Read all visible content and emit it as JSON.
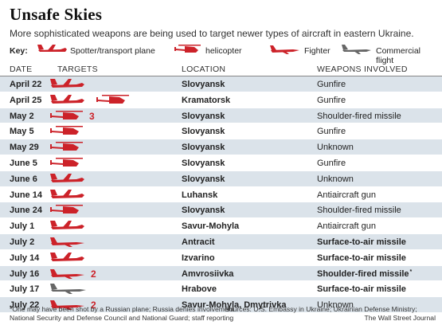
{
  "title": "Unsafe Skies",
  "subtitle": "More sophisticated weapons are being used to target newer types of aircraft in eastern Ukraine.",
  "key": {
    "label": "Key:",
    "items": [
      {
        "label": "Spotter/transport plane",
        "icon": "transport-plane-icon",
        "color": "#cc2229"
      },
      {
        "label": "helicopter",
        "icon": "helicopter-icon",
        "color": "#cc2229"
      },
      {
        "label": "Fighter",
        "icon": "fighter-jet-icon",
        "color": "#cc2229"
      },
      {
        "label": "Commercial flight",
        "icon": "commercial-jet-icon",
        "color": "#666666"
      }
    ]
  },
  "columns": {
    "date": "DATE",
    "targets": "TARGETS",
    "location": "LOCATION",
    "weapons": "WEAPONS INVOLVED"
  },
  "rows": [
    {
      "date": "April 22",
      "targets": [
        "transport"
      ],
      "count": "",
      "location": "Slovyansk",
      "weapons": "Gunfire",
      "weapons_bold": false,
      "note": ""
    },
    {
      "date": "April 25",
      "targets": [
        "transport",
        "helicopter"
      ],
      "count": "",
      "location": "Kramatorsk",
      "weapons": "Gunfire",
      "weapons_bold": false,
      "note": ""
    },
    {
      "date": "May 2",
      "targets": [
        "helicopter"
      ],
      "count": "3",
      "location": "Slovyansk",
      "weapons": "Shoulder-fired missile",
      "weapons_bold": false,
      "note": ""
    },
    {
      "date": "May 5",
      "targets": [
        "helicopter"
      ],
      "count": "",
      "location": "Slovyansk",
      "weapons": "Gunfire",
      "weapons_bold": false,
      "note": ""
    },
    {
      "date": "May 29",
      "targets": [
        "helicopter"
      ],
      "count": "",
      "location": "Slovyansk",
      "weapons": "Unknown",
      "weapons_bold": false,
      "note": ""
    },
    {
      "date": "June 5",
      "targets": [
        "helicopter"
      ],
      "count": "",
      "location": "Slovyansk",
      "weapons": "Gunfire",
      "weapons_bold": false,
      "note": ""
    },
    {
      "date": "June 6",
      "targets": [
        "transport"
      ],
      "count": "",
      "location": "Slovyansk",
      "weapons": "Unknown",
      "weapons_bold": false,
      "note": ""
    },
    {
      "date": "June 14",
      "targets": [
        "transport"
      ],
      "count": "",
      "location": "Luhansk",
      "weapons": "Antiaircraft gun",
      "weapons_bold": false,
      "note": ""
    },
    {
      "date": "June 24",
      "targets": [
        "helicopter"
      ],
      "count": "",
      "location": "Slovyansk",
      "weapons": "Shoulder-fired missile",
      "weapons_bold": false,
      "note": ""
    },
    {
      "date": "July 1",
      "targets": [
        "transport"
      ],
      "count": "",
      "location": "Savur-Mohyla",
      "weapons": "Antiaircraft gun",
      "weapons_bold": false,
      "note": ""
    },
    {
      "date": "July 2",
      "targets": [
        "fighter"
      ],
      "count": "",
      "location": "Antracit",
      "weapons": "Surface-to-air missile",
      "weapons_bold": true,
      "note": ""
    },
    {
      "date": "July 14",
      "targets": [
        "transport"
      ],
      "count": "",
      "location": "Izvarino",
      "weapons": "Surface-to-air missile",
      "weapons_bold": true,
      "note": ""
    },
    {
      "date": "July 16",
      "targets": [
        "fighter"
      ],
      "count": "2",
      "location": "Amvrosiivka",
      "weapons": "Shoulder-fired missile",
      "weapons_bold": true,
      "note": "*"
    },
    {
      "date": "July 17",
      "targets": [
        "commercial"
      ],
      "count": "",
      "location": "Hrabove",
      "weapons": "Surface-to-air missile",
      "weapons_bold": true,
      "note": ""
    },
    {
      "date": "July 22",
      "targets": [
        "fighter"
      ],
      "count": "2",
      "location": "Savur-Mohyla, Dmytrivka",
      "weapons": "Unknown",
      "weapons_bold": false,
      "note": ""
    }
  ],
  "footer": {
    "footnote_line1": "*One may have been shot by a Russian plane; Russia denies involvement",
    "footnote_line2": "National Security and Defense Council and National Guard; staff reporting",
    "sources": "Sources: U.S. Embassy in Ukraine; Ukrainian Defense Ministry;",
    "publisher": "The Wall Street Journal"
  }
}
